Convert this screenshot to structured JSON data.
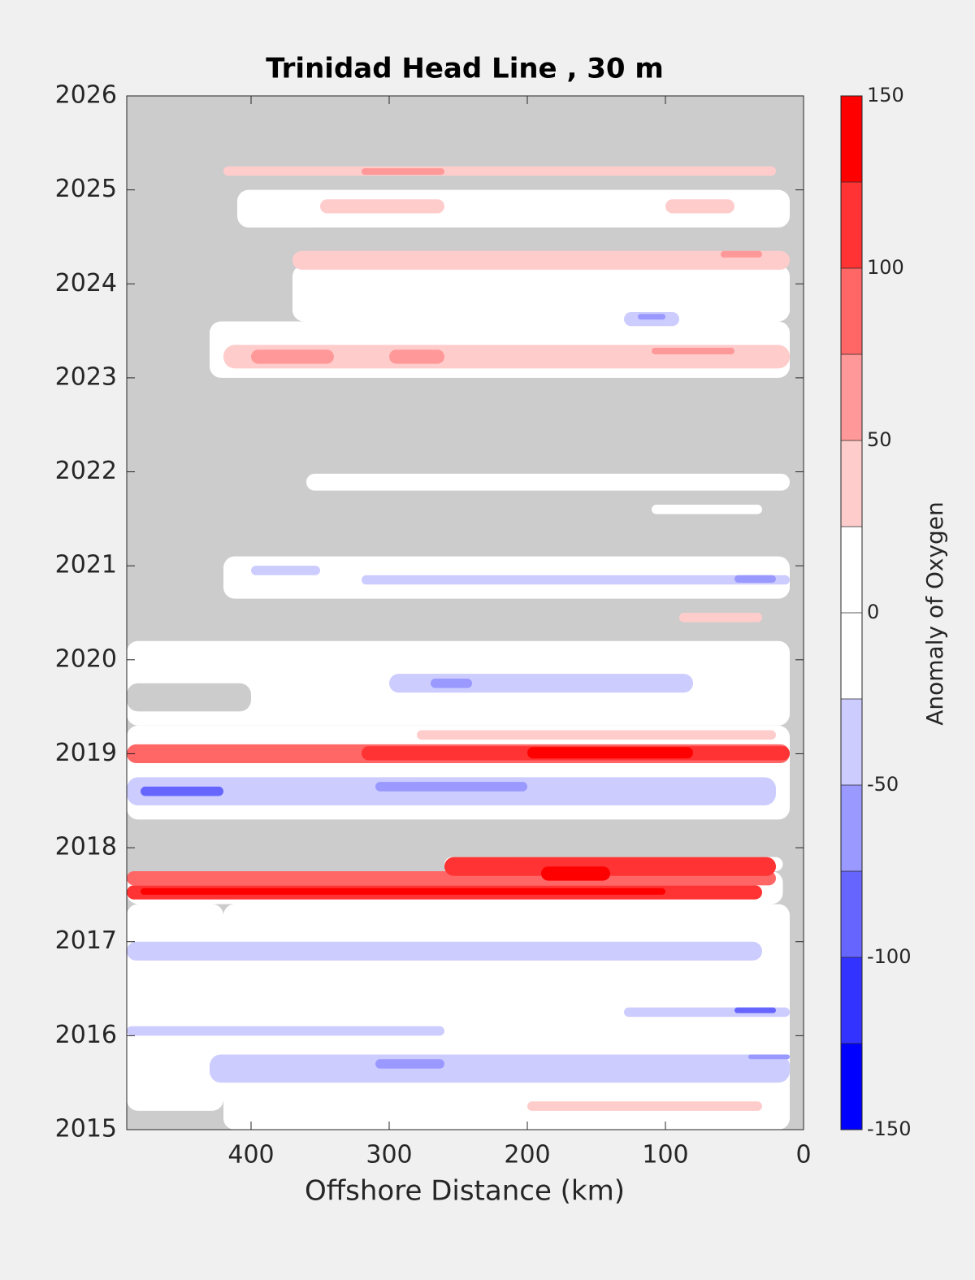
{
  "chart_data": {
    "type": "contour",
    "title": "Trinidad Head Line , 30 m",
    "x_label": "Offshore Distance (km)",
    "colorbar_label": "Anomaly of Oxygen",
    "xlim": [
      490,
      0
    ],
    "xticks": [
      400,
      300,
      200,
      100,
      0
    ],
    "ylim": [
      2015,
      2026
    ],
    "yticks": [
      2015,
      2016,
      2017,
      2018,
      2019,
      2020,
      2021,
      2022,
      2023,
      2024,
      2025,
      2026
    ],
    "nan_color": "#cccccc",
    "levels": [
      -150,
      -125,
      -100,
      -75,
      -50,
      -25,
      0,
      25,
      50,
      75,
      100,
      125,
      150
    ],
    "colors": [
      "#0000ff",
      "#3333ff",
      "#6666ff",
      "#9999ff",
      "#ccccff",
      "#ffffff",
      "#ffffff",
      "#ffcccc",
      "#ff9999",
      "#ff6666",
      "#ff3333",
      "#ff0000"
    ],
    "colorbar_ticks": [
      -150,
      -100,
      -50,
      0,
      50,
      100,
      150
    ],
    "regions": [
      {
        "x": [
          420,
          10
        ],
        "y": [
          2015,
          2017.4
        ],
        "value": 0
      },
      {
        "x": [
          490,
          420
        ],
        "y": [
          2015.2,
          2017.4
        ],
        "value": 0
      },
      {
        "x": [
          490,
          15
        ],
        "y": [
          2017.4,
          2017.75
        ],
        "value": 0
      },
      {
        "x": [
          260,
          15
        ],
        "y": [
          2017.75,
          2017.9
        ],
        "value": 0
      },
      {
        "x": [
          490,
          10
        ],
        "y": [
          2018.3,
          2019.3
        ],
        "value": 0
      },
      {
        "x": [
          490,
          10
        ],
        "y": [
          2019.3,
          2020.2
        ],
        "value": 0
      },
      {
        "x": [
          490,
          400
        ],
        "y": [
          2019.45,
          2019.75
        ],
        "value": null
      },
      {
        "x": [
          420,
          10
        ],
        "y": [
          2020.65,
          2021.1
        ],
        "value": 0
      },
      {
        "x": [
          110,
          30
        ],
        "y": [
          2021.55,
          2021.65
        ],
        "value": 0
      },
      {
        "x": [
          360,
          10
        ],
        "y": [
          2021.8,
          2021.98
        ],
        "value": 0
      },
      {
        "x": [
          430,
          10
        ],
        "y": [
          2023.0,
          2023.6
        ],
        "value": 0
      },
      {
        "x": [
          370,
          10
        ],
        "y": [
          2023.6,
          2024.2
        ],
        "value": 0
      },
      {
        "x": [
          410,
          10
        ],
        "y": [
          2024.6,
          2025.0
        ],
        "value": 0
      },
      {
        "x": [
          430,
          10
        ],
        "y": [
          2015.5,
          2015.8
        ],
        "value": -35
      },
      {
        "x": [
          310,
          260
        ],
        "y": [
          2015.65,
          2015.75
        ],
        "value": -60
      },
      {
        "x": [
          40,
          10
        ],
        "y": [
          2015.75,
          2015.8
        ],
        "value": -70
      },
      {
        "x": [
          200,
          30
        ],
        "y": [
          2015.2,
          2015.3
        ],
        "value": 30
      },
      {
        "x": [
          490,
          260
        ],
        "y": [
          2016.0,
          2016.1
        ],
        "value": -35
      },
      {
        "x": [
          130,
          10
        ],
        "y": [
          2016.2,
          2016.3
        ],
        "value": -40
      },
      {
        "x": [
          50,
          20
        ],
        "y": [
          2016.24,
          2016.3
        ],
        "value": -90
      },
      {
        "x": [
          490,
          30
        ],
        "y": [
          2016.8,
          2017.0
        ],
        "value": -35
      },
      {
        "x": [
          490,
          30
        ],
        "y": [
          2017.45,
          2017.6
        ],
        "value": 110
      },
      {
        "x": [
          480,
          100
        ],
        "y": [
          2017.5,
          2017.57
        ],
        "value": 130
      },
      {
        "x": [
          490,
          20
        ],
        "y": [
          2017.6,
          2017.75
        ],
        "value": 80
      },
      {
        "x": [
          260,
          20
        ],
        "y": [
          2017.7,
          2017.9
        ],
        "value": 110
      },
      {
        "x": [
          190,
          140
        ],
        "y": [
          2017.65,
          2017.8
        ],
        "value": 130
      },
      {
        "x": [
          490,
          20
        ],
        "y": [
          2018.45,
          2018.75
        ],
        "value": -40
      },
      {
        "x": [
          480,
          420
        ],
        "y": [
          2018.55,
          2018.65
        ],
        "value": -90
      },
      {
        "x": [
          310,
          200
        ],
        "y": [
          2018.6,
          2018.7
        ],
        "value": -60
      },
      {
        "x": [
          490,
          10
        ],
        "y": [
          2018.9,
          2019.1
        ],
        "value": 90
      },
      {
        "x": [
          320,
          10
        ],
        "y": [
          2018.93,
          2019.08
        ],
        "value": 115
      },
      {
        "x": [
          200,
          80
        ],
        "y": [
          2018.95,
          2019.07
        ],
        "value": 135
      },
      {
        "x": [
          280,
          20
        ],
        "y": [
          2019.15,
          2019.25
        ],
        "value": 30
      },
      {
        "x": [
          300,
          80
        ],
        "y": [
          2019.65,
          2019.85
        ],
        "value": -35
      },
      {
        "x": [
          270,
          240
        ],
        "y": [
          2019.7,
          2019.8
        ],
        "value": -60
      },
      {
        "x": [
          90,
          30
        ],
        "y": [
          2020.4,
          2020.5
        ],
        "value": 35
      },
      {
        "x": [
          320,
          10
        ],
        "y": [
          2020.8,
          2020.9
        ],
        "value": -35
      },
      {
        "x": [
          50,
          20
        ],
        "y": [
          2020.82,
          2020.9
        ],
        "value": -60
      },
      {
        "x": [
          400,
          350
        ],
        "y": [
          2020.9,
          2021.0
        ],
        "value": -35
      },
      {
        "x": [
          420,
          10
        ],
        "y": [
          2023.1,
          2023.35
        ],
        "value": 35
      },
      {
        "x": [
          400,
          340
        ],
        "y": [
          2023.15,
          2023.3
        ],
        "value": 60
      },
      {
        "x": [
          300,
          260
        ],
        "y": [
          2023.15,
          2023.3
        ],
        "value": 60
      },
      {
        "x": [
          110,
          50
        ],
        "y": [
          2023.25,
          2023.32
        ],
        "value": 60
      },
      {
        "x": [
          130,
          90
        ],
        "y": [
          2023.55,
          2023.7
        ],
        "value": -40
      },
      {
        "x": [
          120,
          100
        ],
        "y": [
          2023.62,
          2023.68
        ],
        "value": -70
      },
      {
        "x": [
          370,
          10
        ],
        "y": [
          2024.15,
          2024.35
        ],
        "value": 35
      },
      {
        "x": [
          60,
          30
        ],
        "y": [
          2024.28,
          2024.35
        ],
        "value": 60
      },
      {
        "x": [
          350,
          260
        ],
        "y": [
          2024.75,
          2024.9
        ],
        "value": 30
      },
      {
        "x": [
          100,
          50
        ],
        "y": [
          2024.75,
          2024.9
        ],
        "value": 30
      },
      {
        "x": [
          420,
          20
        ],
        "y": [
          2025.15,
          2025.25
        ],
        "value": 30
      },
      {
        "x": [
          320,
          260
        ],
        "y": [
          2025.16,
          2025.23
        ],
        "value": 60
      }
    ]
  }
}
